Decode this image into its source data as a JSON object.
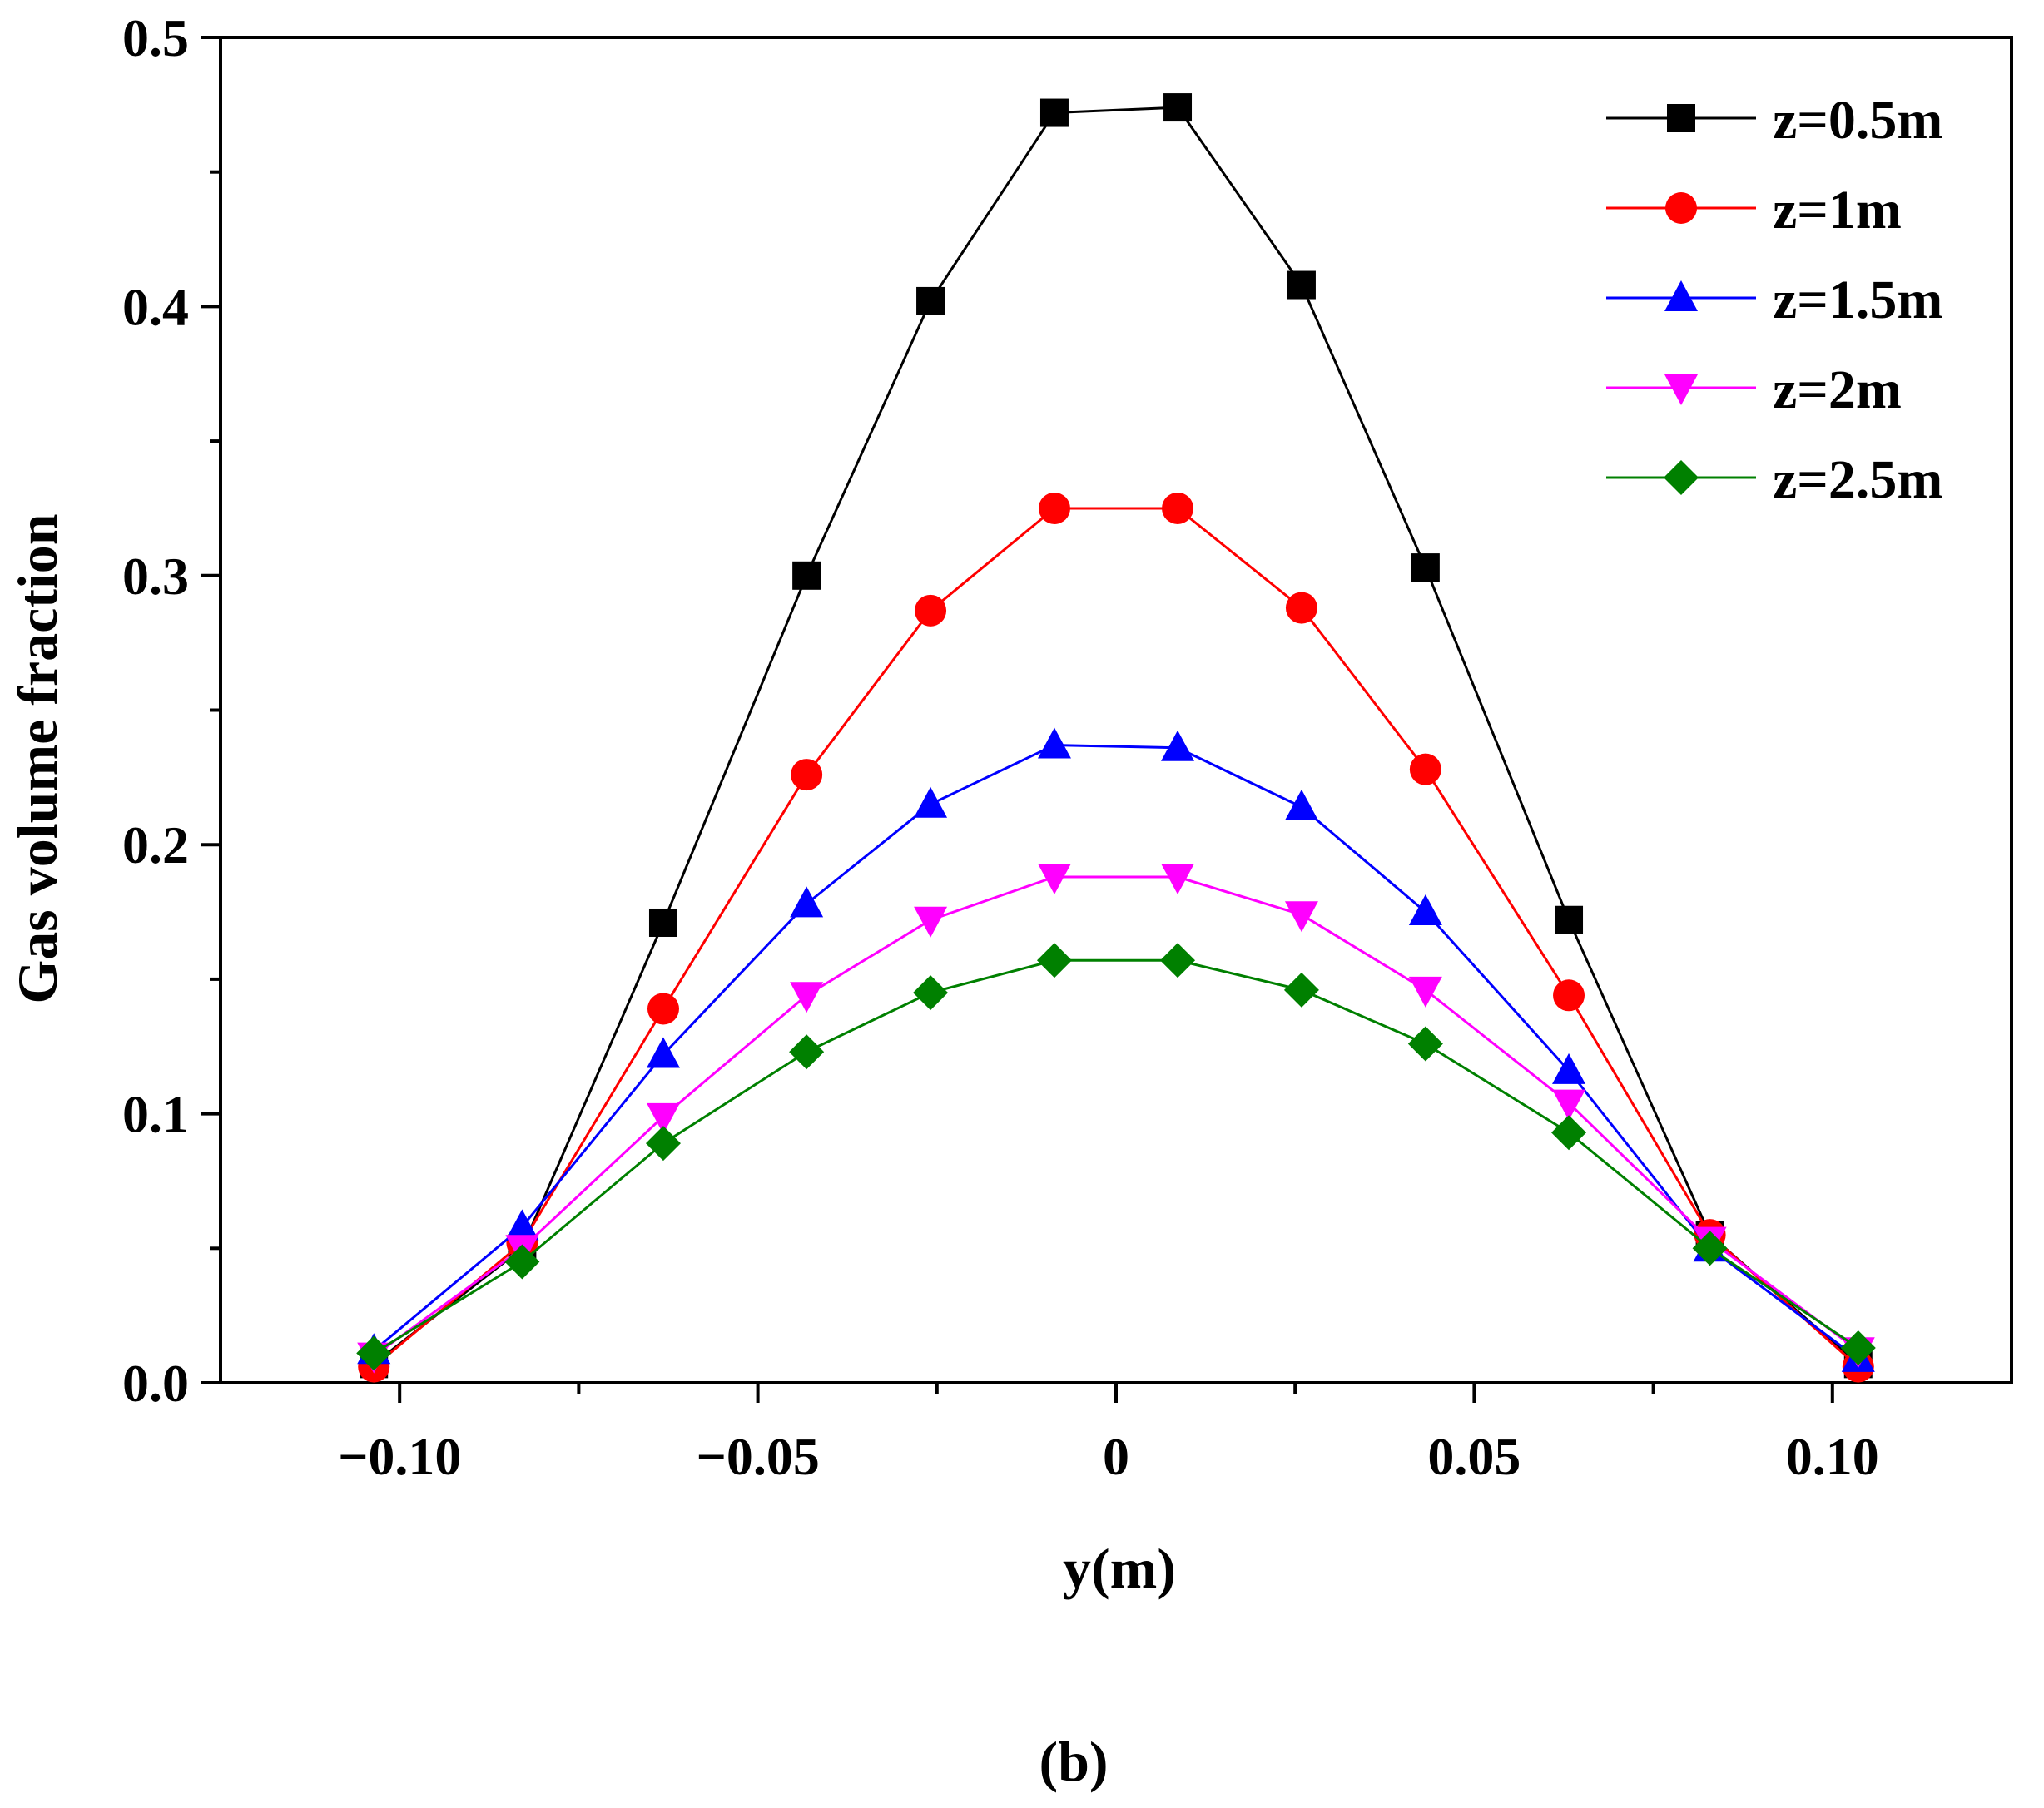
{
  "chart_data": {
    "type": "line",
    "title": "",
    "xlabel": "y(m)",
    "ylabel": "Gas volume fraction",
    "caption": "(b)",
    "xlim": [
      -0.125,
      0.125
    ],
    "ylim": [
      0.0,
      0.5
    ],
    "grid": false,
    "legend_position": "top-right",
    "x_ticks": [
      {
        "value": -0.1,
        "label": "−0.10"
      },
      {
        "value": -0.05,
        "label": "−0.05"
      },
      {
        "value": 0,
        "label": "0"
      },
      {
        "value": 0.05,
        "label": "0.05"
      },
      {
        "value": 0.1,
        "label": "0.10"
      }
    ],
    "y_ticks": [
      {
        "value": 0.0,
        "label": "0.0"
      },
      {
        "value": 0.1,
        "label": "0.1"
      },
      {
        "value": 0.2,
        "label": "0.2"
      },
      {
        "value": 0.3,
        "label": "0.3"
      },
      {
        "value": 0.4,
        "label": "0.4"
      },
      {
        "value": 0.5,
        "label": "0.5"
      }
    ],
    "x": [
      -0.1036,
      -0.0829,
      -0.0632,
      -0.0432,
      -0.0259,
      -0.0086,
      0.0086,
      0.0259,
      0.0432,
      0.0632,
      0.0829,
      0.1036
    ],
    "series": [
      {
        "name": "z=0.5m",
        "color": "#000000",
        "marker": "square",
        "values": [
          0.007,
          0.05,
          0.171,
          0.3,
          0.402,
          0.472,
          0.474,
          0.408,
          0.303,
          0.172,
          0.055,
          0.007
        ]
      },
      {
        "name": "z=1m",
        "color": "#ff0000",
        "marker": "circle",
        "values": [
          0.006,
          0.052,
          0.139,
          0.226,
          0.287,
          0.325,
          0.325,
          0.288,
          0.228,
          0.144,
          0.055,
          0.006
        ]
      },
      {
        "name": "z=1.5m",
        "color": "#0000ff",
        "marker": "triangle-up",
        "values": [
          0.012,
          0.058,
          0.122,
          0.178,
          0.215,
          0.237,
          0.236,
          0.214,
          0.175,
          0.116,
          0.05,
          0.009
        ]
      },
      {
        "name": "z=2m",
        "color": "#ff00ff",
        "marker": "triangle-down",
        "values": [
          0.01,
          0.05,
          0.099,
          0.144,
          0.172,
          0.188,
          0.188,
          0.174,
          0.146,
          0.104,
          0.053,
          0.012
        ]
      },
      {
        "name": "z=2.5m",
        "color": "#008000",
        "marker": "diamond",
        "values": [
          0.011,
          0.045,
          0.089,
          0.123,
          0.145,
          0.157,
          0.157,
          0.146,
          0.126,
          0.093,
          0.05,
          0.013
        ]
      }
    ]
  }
}
